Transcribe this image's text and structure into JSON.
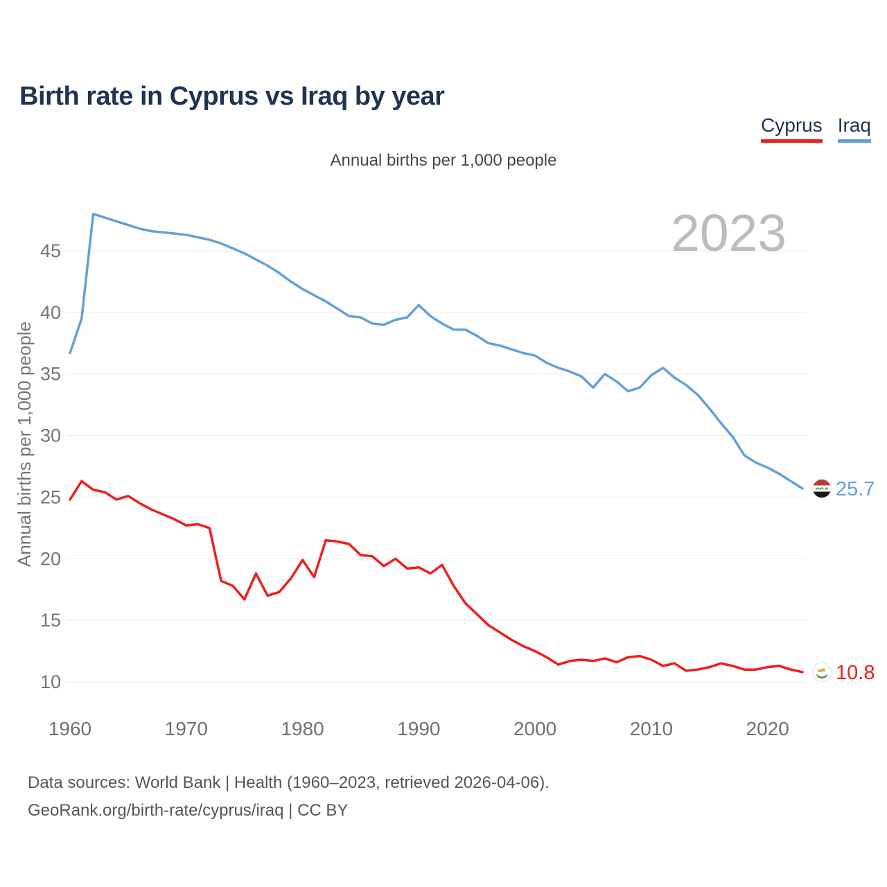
{
  "title": "Birth rate in Cyprus vs Iraq by year",
  "subtitle": "Annual births per 1,000 people",
  "watermark": "2023",
  "legend": {
    "items": [
      {
        "label": "Cyprus",
        "color": "#f01e1a"
      },
      {
        "label": "Iraq",
        "color": "#63a0d9"
      }
    ]
  },
  "footer": {
    "line1": "Data sources: World Bank | Health (1960–2023, retrieved 2026-04-06).",
    "line2": "GeoRank.org/birth-rate/cyprus/iraq | CC BY"
  },
  "chart_data": {
    "type": "line",
    "title": "Birth rate in Cyprus vs Iraq by year",
    "subtitle": "Annual births per 1,000 people",
    "xlabel": "",
    "ylabel": "Annual births per 1,000 people",
    "x_start": 1960,
    "x_end": 2023,
    "xticks": [
      1960,
      1970,
      1980,
      1990,
      2000,
      2010,
      2020
    ],
    "yticks": [
      10,
      15,
      20,
      25,
      30,
      35,
      40,
      45
    ],
    "ylim": [
      8.8,
      48.5
    ],
    "grid": "horizontal",
    "legend_position": "top-right",
    "watermark_year": "2023",
    "series": [
      {
        "name": "Cyprus",
        "color": "#f01e1a",
        "end_label": "10.8",
        "flag": "cyprus",
        "values": [
          24.8,
          26.3,
          25.6,
          25.4,
          24.8,
          25.1,
          24.5,
          24.0,
          23.6,
          23.2,
          22.7,
          22.8,
          22.5,
          18.2,
          17.8,
          16.7,
          18.8,
          17.0,
          17.3,
          18.4,
          19.9,
          18.5,
          21.5,
          21.4,
          21.2,
          20.3,
          20.2,
          19.4,
          20.0,
          19.2,
          19.3,
          18.8,
          19.5,
          17.8,
          16.4,
          15.5,
          14.6,
          14.0,
          13.4,
          12.9,
          12.5,
          12.0,
          11.4,
          11.7,
          11.8,
          11.7,
          11.9,
          11.6,
          12.0,
          12.1,
          11.8,
          11.3,
          11.5,
          10.9,
          11.0,
          11.2,
          11.5,
          11.3,
          11.0,
          11.0,
          11.2,
          11.3,
          11.0,
          10.8
        ]
      },
      {
        "name": "Iraq",
        "color": "#63a0d9",
        "end_label": "25.7",
        "flag": "iraq",
        "values": [
          36.7,
          39.5,
          48.0,
          47.7,
          47.4,
          47.1,
          46.8,
          46.6,
          46.5,
          46.4,
          46.3,
          46.1,
          45.9,
          45.6,
          45.2,
          44.8,
          44.3,
          43.8,
          43.2,
          42.5,
          41.9,
          41.4,
          40.9,
          40.3,
          39.7,
          39.6,
          39.1,
          39.0,
          39.4,
          39.6,
          40.6,
          39.7,
          39.1,
          38.6,
          38.6,
          38.1,
          37.5,
          37.3,
          37.0,
          36.7,
          36.5,
          35.9,
          35.5,
          35.2,
          34.8,
          33.9,
          35.0,
          34.4,
          33.6,
          33.9,
          34.9,
          35.5,
          34.7,
          34.1,
          33.3,
          32.2,
          31.0,
          29.9,
          28.4,
          27.8,
          27.4,
          26.9,
          26.3,
          25.7
        ]
      }
    ]
  }
}
